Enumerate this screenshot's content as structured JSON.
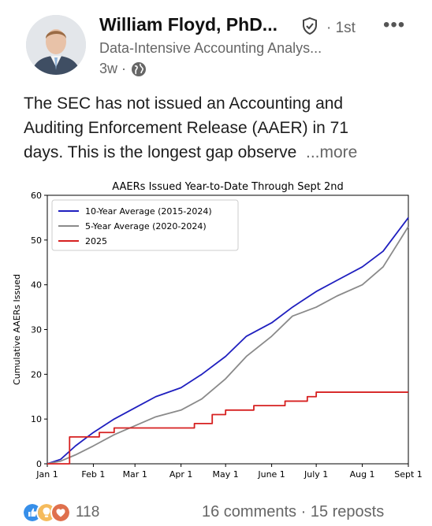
{
  "post": {
    "author_name": "William Floyd, PhD...",
    "connection_degree": "· 1st",
    "headline": "Data-Intensive Accounting Analys...",
    "time_ago": "3w ·",
    "text_lines": [
      "The SEC has not issued an Accounting and",
      "Auditing Enforcement Release (AAER) in 71",
      "days.  This is the longest gap observe"
    ],
    "see_more": "...more"
  },
  "engagement": {
    "reaction_count": "118",
    "comments_reposts": "16 comments · 15 reposts"
  },
  "icons": {
    "verified": "verified-shield-icon",
    "globe": "globe-icon",
    "overflow": "more-options-icon",
    "reactions": [
      "like-icon",
      "insightful-icon",
      "love-icon"
    ]
  },
  "colors": {
    "ten_year": "#1f1fbf",
    "five_year": "#8a8a8a",
    "current_year": "#d62020"
  },
  "chart_data": {
    "type": "line",
    "title": "AAERs Issued Year-to-Date Through Sept 2nd",
    "xlabel": "",
    "ylabel": "Cumulative AAERs Issued",
    "x_ticks": [
      "Jan 1",
      "Feb 1",
      "Mar 1",
      "Apr 1",
      "May 1",
      "June 1",
      "July 1",
      "Aug 1",
      "Sept 1"
    ],
    "x_tick_days": [
      0,
      31,
      59,
      90,
      120,
      151,
      181,
      212,
      243
    ],
    "y_ticks": [
      0,
      10,
      20,
      30,
      40,
      50,
      60
    ],
    "xlim": [
      "2025-01-01",
      "2025-09-01"
    ],
    "ylim": [
      0,
      60
    ],
    "legend_position": "top-left",
    "grid": false,
    "series": [
      {
        "name": "10-Year Average (2015-2024)",
        "x": [
          "2025-01-01",
          "2025-01-10",
          "2025-01-20",
          "2025-02-01",
          "2025-02-15",
          "2025-03-01",
          "2025-03-15",
          "2025-04-01",
          "2025-04-15",
          "2025-05-01",
          "2025-05-15",
          "2025-06-01",
          "2025-06-15",
          "2025-07-01",
          "2025-07-15",
          "2025-08-01",
          "2025-08-15",
          "2025-09-01"
        ],
        "y": [
          0,
          1,
          4,
          7,
          10,
          12.5,
          15,
          17,
          20,
          24,
          28.5,
          31.5,
          35,
          38.5,
          41,
          44,
          47.5,
          55
        ]
      },
      {
        "name": "5-Year Average (2020-2024)",
        "x": [
          "2025-01-01",
          "2025-01-10",
          "2025-01-20",
          "2025-02-01",
          "2025-02-15",
          "2025-03-01",
          "2025-03-15",
          "2025-04-01",
          "2025-04-15",
          "2025-05-01",
          "2025-05-15",
          "2025-06-01",
          "2025-06-15",
          "2025-07-01",
          "2025-07-15",
          "2025-08-01",
          "2025-08-15",
          "2025-09-01"
        ],
        "y": [
          0,
          0.6,
          2,
          4,
          6.5,
          8.5,
          10.5,
          12,
          14.5,
          19,
          24,
          28.5,
          33,
          35,
          37.5,
          40,
          44,
          53
        ]
      },
      {
        "name": "2025",
        "x": [
          "2025-01-01",
          "2025-01-15",
          "2025-01-16",
          "2025-02-01",
          "2025-02-05",
          "2025-02-15",
          "2025-03-28",
          "2025-04-10",
          "2025-04-22",
          "2025-05-01",
          "2025-05-20",
          "2025-06-10",
          "2025-06-25",
          "2025-07-01",
          "2025-09-01"
        ],
        "y": [
          0,
          0,
          6,
          6,
          7,
          8,
          8,
          9,
          11,
          12,
          13,
          14,
          15,
          16,
          16
        ]
      }
    ]
  }
}
